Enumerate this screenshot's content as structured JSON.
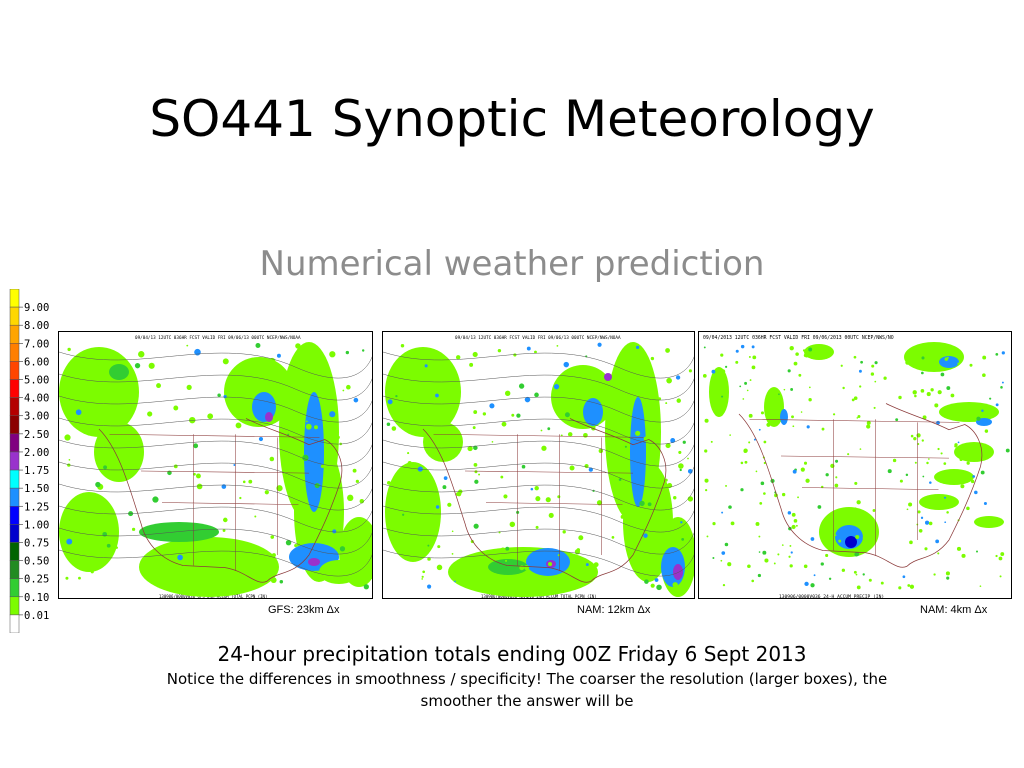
{
  "slide": {
    "title": "SO441 Synoptic Meteorology",
    "subtitle": "Numerical weather prediction"
  },
  "legend": {
    "levels": [
      "9.00",
      "8.00",
      "7.00",
      "6.00",
      "5.00",
      "4.00",
      "3.00",
      "2.50",
      "2.00",
      "1.75",
      "1.50",
      "1.25",
      "1.00",
      "0.75",
      "0.50",
      "0.25",
      "0.10",
      "0.01"
    ],
    "colors": [
      "#ffff00",
      "#ffd700",
      "#ffa500",
      "#ff7f00",
      "#ff4500",
      "#ff0000",
      "#b40000",
      "#8b0000",
      "#800080",
      "#9932cc",
      "#00ffff",
      "#1e90ff",
      "#0000ff",
      "#0000cd",
      "#006400",
      "#228b22",
      "#32cd32",
      "#7cfc00",
      "#ffffff"
    ]
  },
  "panels": [
    {
      "caption": "GFS: 23km Δx",
      "header": "09/04/13 12UTC 036HR FCST VALID FRI 09/06/13 00UTC NCEP/NWS/NOAA",
      "footer": "130906/0000V036 GFS 24H ACCUM TOTAL PCPN (IN)"
    },
    {
      "caption": "NAM: 12km Δx",
      "header": "09/04/13 12UTC 036HR FCST VALID FRI 09/06/13 00UTC NCEP/NWS/NOAA",
      "footer": "130906/0000V036 NAM218 24H ACCUM TOTAL PCPN (IN)"
    },
    {
      "caption": "NAM: 4km Δx",
      "header": "09/04/2013 12UTC 036HR FCST VALID FRI 09/06/2013 00UTC NCEP/NWS/NO",
      "footer": "130906/0000V036 24-H ACCUM PRECIP (IN)"
    }
  ],
  "caption": {
    "main": "24-hour precipitation totals ending 00Z Friday 6 Sept 2013",
    "note": "Notice the differences in smoothness / specificity! The coarser the resolution (larger boxes), the smoother the answer will be"
  }
}
